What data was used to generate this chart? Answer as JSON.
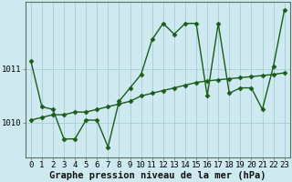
{
  "xlabel": "Graphe pression niveau de la mer (hPa)",
  "bg_color": "#ceeaf0",
  "line_color": "#1a5c1a",
  "grid_color": "#9ec8d0",
  "x_ticks": [
    0,
    1,
    2,
    3,
    4,
    5,
    6,
    7,
    8,
    9,
    10,
    11,
    12,
    13,
    14,
    15,
    16,
    17,
    18,
    19,
    20,
    21,
    22,
    23
  ],
  "ytick_labels": [
    "1010",
    "1011"
  ],
  "ytick_vals": [
    1010.0,
    1011.0
  ],
  "ylim": [
    1009.35,
    1012.25
  ],
  "xlim": [
    -0.5,
    23.5
  ],
  "series1_x": [
    0,
    1,
    2,
    3,
    4,
    5,
    6,
    7,
    8,
    9,
    10,
    11,
    12,
    13,
    14,
    15,
    16,
    17,
    18,
    19,
    20,
    21,
    22,
    23
  ],
  "series1_y": [
    1011.15,
    1010.3,
    1010.25,
    1009.7,
    1009.7,
    1010.05,
    1010.05,
    1009.55,
    1010.4,
    1010.65,
    1010.9,
    1011.55,
    1011.85,
    1011.65,
    1011.85,
    1011.85,
    1010.5,
    1011.85,
    1010.55,
    1010.65,
    1010.65,
    1010.25,
    1011.05,
    1012.1
  ],
  "series2_x": [
    0,
    1,
    2,
    3,
    4,
    5,
    6,
    7,
    8,
    9,
    10,
    11,
    12,
    13,
    14,
    15,
    16,
    17,
    18,
    19,
    20,
    21,
    22,
    23
  ],
  "series2_y": [
    1010.05,
    1010.1,
    1010.15,
    1010.15,
    1010.2,
    1010.2,
    1010.25,
    1010.3,
    1010.35,
    1010.4,
    1010.5,
    1010.55,
    1010.6,
    1010.65,
    1010.7,
    1010.75,
    1010.78,
    1010.8,
    1010.82,
    1010.84,
    1010.86,
    1010.88,
    1010.9,
    1010.93
  ],
  "marker": "D",
  "markersize": 2.5,
  "linewidth": 1.0,
  "xlabel_fontsize": 7.5,
  "tick_fontsize": 6.5
}
